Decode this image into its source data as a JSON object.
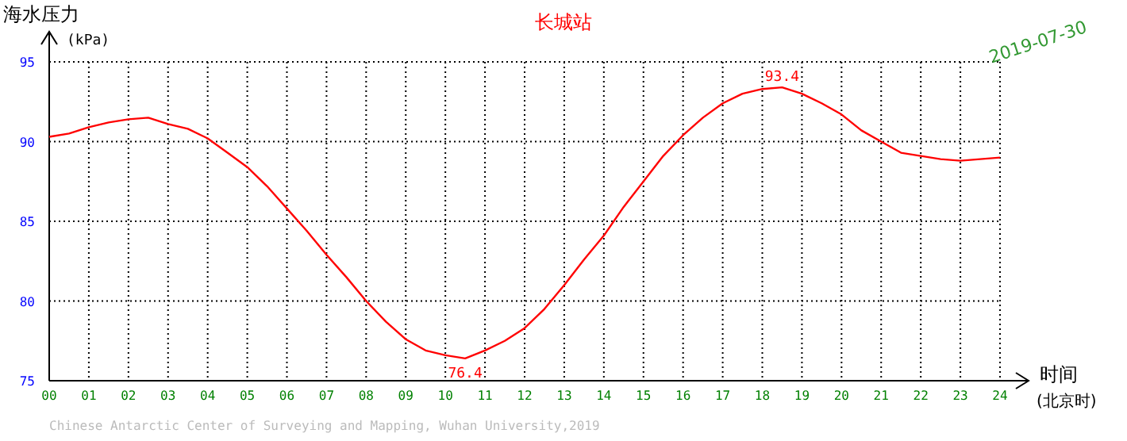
{
  "chart_data": {
    "type": "line",
    "title": "长城站",
    "xlabel": "时间",
    "ylabel": "海水压力",
    "x": [
      0,
      0.5,
      1,
      1.5,
      2,
      2.5,
      3,
      3.5,
      4,
      4.5,
      5,
      5.5,
      6,
      6.5,
      7,
      7.5,
      8,
      8.5,
      9,
      9.5,
      10,
      10.5,
      11,
      11.5,
      12,
      12.5,
      13,
      13.5,
      14,
      14.5,
      15,
      15.5,
      16,
      16.5,
      17,
      17.5,
      18,
      18.5,
      19,
      19.5,
      20,
      20.5,
      21,
      21.5,
      22,
      22.5,
      23,
      23.5,
      24
    ],
    "series": [
      {
        "color": "#ff0000",
        "values": [
          90.3,
          90.5,
          90.9,
          91.2,
          91.4,
          91.5,
          91.1,
          90.8,
          90.2,
          89.3,
          88.4,
          87.2,
          85.8,
          84.4,
          82.9,
          81.5,
          80.0,
          78.7,
          77.6,
          76.9,
          76.6,
          76.4,
          76.9,
          77.5,
          78.3,
          79.5,
          81.0,
          82.6,
          84.1,
          85.9,
          87.5,
          89.1,
          90.4,
          91.5,
          92.4,
          93.0,
          93.3,
          93.4,
          93.0,
          92.4,
          91.7,
          90.7,
          90.0,
          89.3,
          89.1,
          88.9,
          88.8,
          88.9,
          89.0
        ]
      }
    ],
    "xlim": [
      0,
      24
    ],
    "ylim": [
      75,
      95
    ],
    "xticks": [
      {
        "value": 0,
        "label": "00"
      },
      {
        "value": 1,
        "label": "01"
      },
      {
        "value": 2,
        "label": "02"
      },
      {
        "value": 3,
        "label": "03"
      },
      {
        "value": 4,
        "label": "04"
      },
      {
        "value": 5,
        "label": "05"
      },
      {
        "value": 6,
        "label": "06"
      },
      {
        "value": 7,
        "label": "07"
      },
      {
        "value": 8,
        "label": "08"
      },
      {
        "value": 9,
        "label": "09"
      },
      10,
      11,
      12,
      13,
      14,
      15,
      16,
      17,
      18,
      19,
      20,
      21,
      22,
      23,
      24
    ],
    "yticks": [
      75,
      80,
      85,
      90,
      95
    ],
    "grid": true,
    "line_style": "solid",
    "annotations": [
      "(kPa)",
      "2019-07-30",
      "(北京时)",
      "Chinese Antarctic Center of Surveying and Mapping, Wuhan University,2019",
      {
        "text": "93.4",
        "x": 18.5,
        "y": 93.4
      },
      {
        "text": "76.4",
        "x": 10.5,
        "y": 76.4
      }
    ]
  }
}
